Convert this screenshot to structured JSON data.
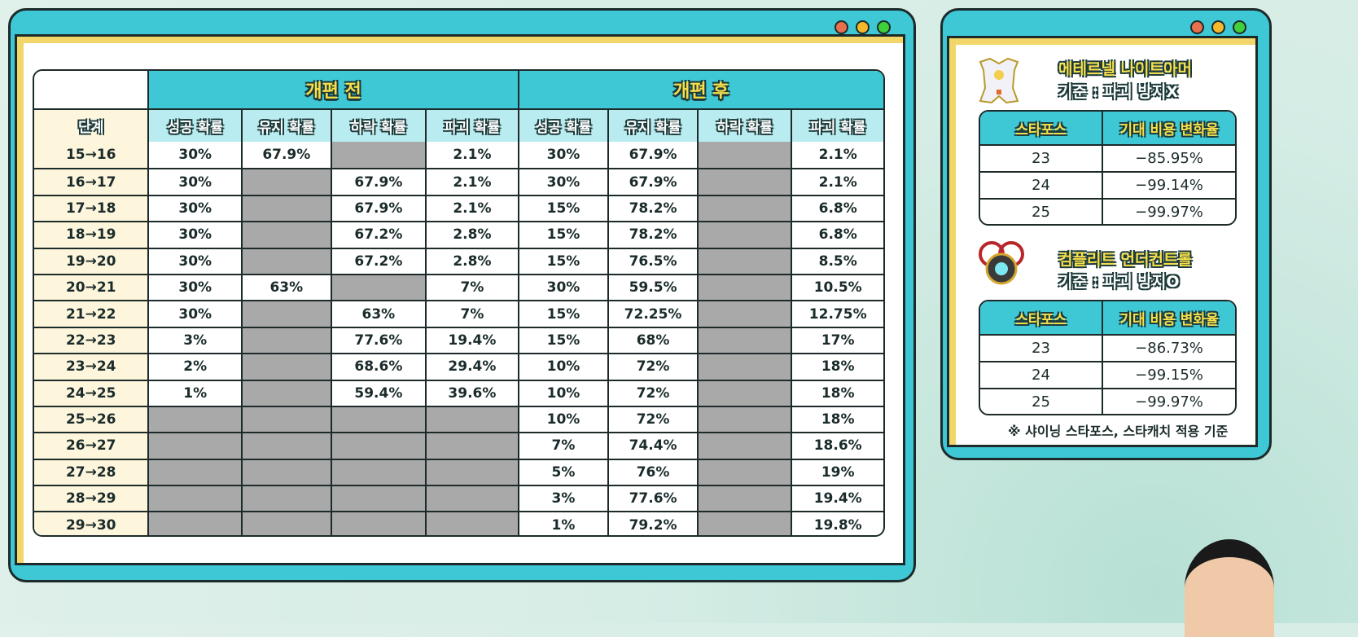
{
  "colors": {
    "frame": "#3ec8d6",
    "accent_yellow": "#f6df4a",
    "gray_cell": "#a9a9a9",
    "red_dot": "#e8704c",
    "yellow_dot": "#f5b82a",
    "green_dot": "#3fd03a"
  },
  "main_table": {
    "group_before": "개편 전",
    "group_after": "개편 후",
    "columns": [
      "단계",
      "성공 확률",
      "유지 확률",
      "하락 확률",
      "파괴 확률",
      "성공 확률",
      "유지 확률",
      "하락 확률",
      "파괴 확률"
    ],
    "rows": [
      [
        "15→16",
        "30%",
        "67.9%",
        null,
        "2.1%",
        "30%",
        "67.9%",
        null,
        "2.1%"
      ],
      [
        "16→17",
        "30%",
        null,
        "67.9%",
        "2.1%",
        "30%",
        "67.9%",
        null,
        "2.1%"
      ],
      [
        "17→18",
        "30%",
        null,
        "67.9%",
        "2.1%",
        "15%",
        "78.2%",
        null,
        "6.8%"
      ],
      [
        "18→19",
        "30%",
        null,
        "67.2%",
        "2.8%",
        "15%",
        "78.2%",
        null,
        "6.8%"
      ],
      [
        "19→20",
        "30%",
        null,
        "67.2%",
        "2.8%",
        "15%",
        "76.5%",
        null,
        "8.5%"
      ],
      [
        "20→21",
        "30%",
        "63%",
        null,
        "7%",
        "30%",
        "59.5%",
        null,
        "10.5%"
      ],
      [
        "21→22",
        "30%",
        null,
        "63%",
        "7%",
        "15%",
        "72.25%",
        null,
        "12.75%"
      ],
      [
        "22→23",
        "3%",
        null,
        "77.6%",
        "19.4%",
        "15%",
        "68%",
        null,
        "17%"
      ],
      [
        "23→24",
        "2%",
        null,
        "68.6%",
        "29.4%",
        "10%",
        "72%",
        null,
        "18%"
      ],
      [
        "24→25",
        "1%",
        null,
        "59.4%",
        "39.6%",
        "10%",
        "72%",
        null,
        "18%"
      ],
      [
        "25→26",
        null,
        null,
        null,
        null,
        "10%",
        "72%",
        null,
        "18%"
      ],
      [
        "26→27",
        null,
        null,
        null,
        null,
        "7%",
        "74.4%",
        null,
        "18.6%"
      ],
      [
        "27→28",
        null,
        null,
        null,
        null,
        "5%",
        "76%",
        null,
        "19%"
      ],
      [
        "28→29",
        null,
        null,
        null,
        null,
        "3%",
        "77.6%",
        null,
        "19.4%"
      ],
      [
        "29→30",
        null,
        null,
        null,
        null,
        "1%",
        "79.2%",
        null,
        "19.8%"
      ]
    ]
  },
  "side": {
    "items": [
      {
        "name": "에테르넬 나이트아머",
        "basis": "기준 : 파괴 방지X",
        "icon": "armor-icon",
        "headers": [
          "스타포스",
          "기대 비용 변화율"
        ],
        "rows": [
          [
            "23",
            "−85.95%"
          ],
          [
            "24",
            "−99.14%"
          ],
          [
            "25",
            "−99.97%"
          ]
        ]
      },
      {
        "name": "컴플리트 언더컨트롤",
        "basis": "기준 : 파괴 방지O",
        "icon": "emblem-icon",
        "headers": [
          "스타포스",
          "기대 비용 변화율"
        ],
        "rows": [
          [
            "23",
            "−86.73%"
          ],
          [
            "24",
            "−99.15%"
          ],
          [
            "25",
            "−99.97%"
          ]
        ]
      }
    ],
    "footnote": "※ 샤이닝 스타포스, 스타캐치 적용 기준"
  }
}
